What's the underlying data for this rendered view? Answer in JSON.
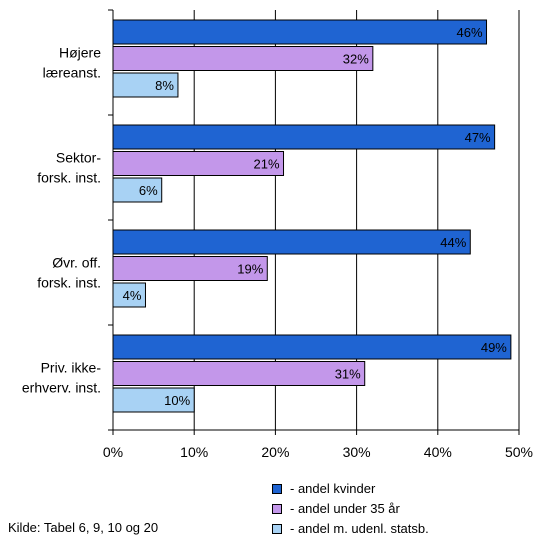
{
  "chart_data": {
    "type": "bar",
    "orientation": "horizontal",
    "categories": [
      [
        "Højere",
        "læreanst."
      ],
      [
        "Sektor-",
        "forsk. inst."
      ],
      [
        "Øvr. off.",
        "forsk. inst."
      ],
      [
        "Priv. ikke-",
        "erhverv. inst."
      ]
    ],
    "series": [
      {
        "name": "- andel kvinder",
        "color": "#1f64d2",
        "values": [
          46,
          47,
          44,
          49
        ],
        "labels": [
          "46%",
          "47%",
          "44%",
          "49%"
        ]
      },
      {
        "name": "- andel under 35 år",
        "color": "#c397ea",
        "values": [
          32,
          21,
          19,
          31
        ],
        "labels": [
          "32%",
          "21%",
          "19%",
          "31%"
        ]
      },
      {
        "name": "- andel m. udenl. statsb.",
        "color": "#a8d2f4",
        "values": [
          8,
          6,
          4,
          10
        ],
        "labels": [
          "8%",
          "6%",
          "4%",
          "10%"
        ]
      }
    ],
    "xlim": [
      0,
      50
    ],
    "xticks": [
      0,
      10,
      20,
      30,
      40,
      50
    ],
    "xtick_labels": [
      "0%",
      "10%",
      "20%",
      "30%",
      "40%",
      "50%"
    ],
    "grid": true,
    "legend_position": "bottom-right"
  },
  "source_note": "Kilde: Tabel 6, 9, 10 og 20"
}
